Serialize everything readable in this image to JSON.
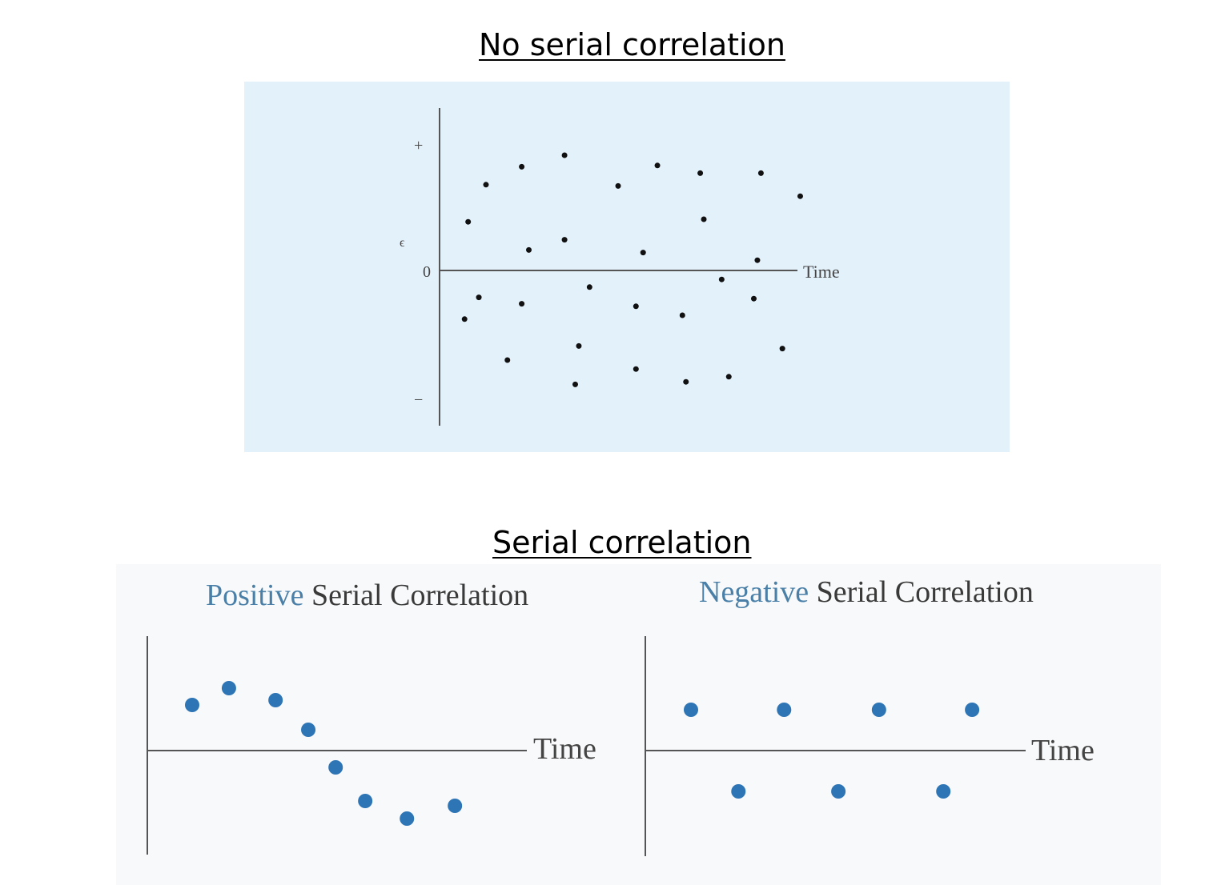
{
  "headings": {
    "top": "No serial correlation",
    "bottom": "Serial correlation"
  },
  "chart_data": [
    {
      "type": "scatter",
      "title": "",
      "xlabel": "Time",
      "ylabel": "ϵ",
      "y_tick_labels": [
        "+",
        "0",
        "−"
      ],
      "background": "#e3f1fb",
      "point_color": "#111111",
      "grid": false,
      "points": [
        [
          0.8,
          0.38
        ],
        [
          1.3,
          0.67
        ],
        [
          2.3,
          0.81
        ],
        [
          3.5,
          0.9
        ],
        [
          5.0,
          0.66
        ],
        [
          6.1,
          0.82
        ],
        [
          7.3,
          0.76
        ],
        [
          9.0,
          0.76
        ],
        [
          10.1,
          0.58
        ],
        [
          7.4,
          0.4
        ],
        [
          2.5,
          0.16
        ],
        [
          3.5,
          0.24
        ],
        [
          5.7,
          0.14
        ],
        [
          8.9,
          0.08
        ],
        [
          1.1,
          -0.21
        ],
        [
          0.7,
          -0.38
        ],
        [
          2.3,
          -0.26
        ],
        [
          4.2,
          -0.13
        ],
        [
          5.5,
          -0.28
        ],
        [
          6.8,
          -0.35
        ],
        [
          7.9,
          -0.07
        ],
        [
          8.8,
          -0.22
        ],
        [
          1.9,
          -0.7
        ],
        [
          3.9,
          -0.59
        ],
        [
          3.8,
          -0.89
        ],
        [
          5.5,
          -0.77
        ],
        [
          6.9,
          -0.87
        ],
        [
          8.1,
          -0.83
        ],
        [
          9.6,
          -0.61
        ]
      ]
    },
    {
      "type": "scatter",
      "title_accent": "Positive",
      "title_rest": " Serial Correlation",
      "xlabel": "Time",
      "point_color": "#2e75b6",
      "accent_color": "#4a80a8",
      "grid": false,
      "points": [
        [
          1.0,
          0.57
        ],
        [
          1.82,
          0.78
        ],
        [
          2.86,
          0.63
        ],
        [
          3.59,
          0.26
        ],
        [
          4.2,
          -0.21
        ],
        [
          4.86,
          -0.63
        ],
        [
          5.79,
          -0.85
        ],
        [
          6.86,
          -0.69
        ]
      ]
    },
    {
      "type": "scatter",
      "title_accent": "Negative",
      "title_rest": " Serial Correlation",
      "xlabel": "Time",
      "point_color": "#2e75b6",
      "accent_color": "#4a80a8",
      "grid": false,
      "points": [
        [
          1.0,
          0.51
        ],
        [
          2.04,
          -0.51
        ],
        [
          3.04,
          0.51
        ],
        [
          4.23,
          -0.51
        ],
        [
          5.12,
          0.51
        ],
        [
          6.53,
          -0.51
        ],
        [
          7.16,
          0.51
        ]
      ]
    }
  ]
}
